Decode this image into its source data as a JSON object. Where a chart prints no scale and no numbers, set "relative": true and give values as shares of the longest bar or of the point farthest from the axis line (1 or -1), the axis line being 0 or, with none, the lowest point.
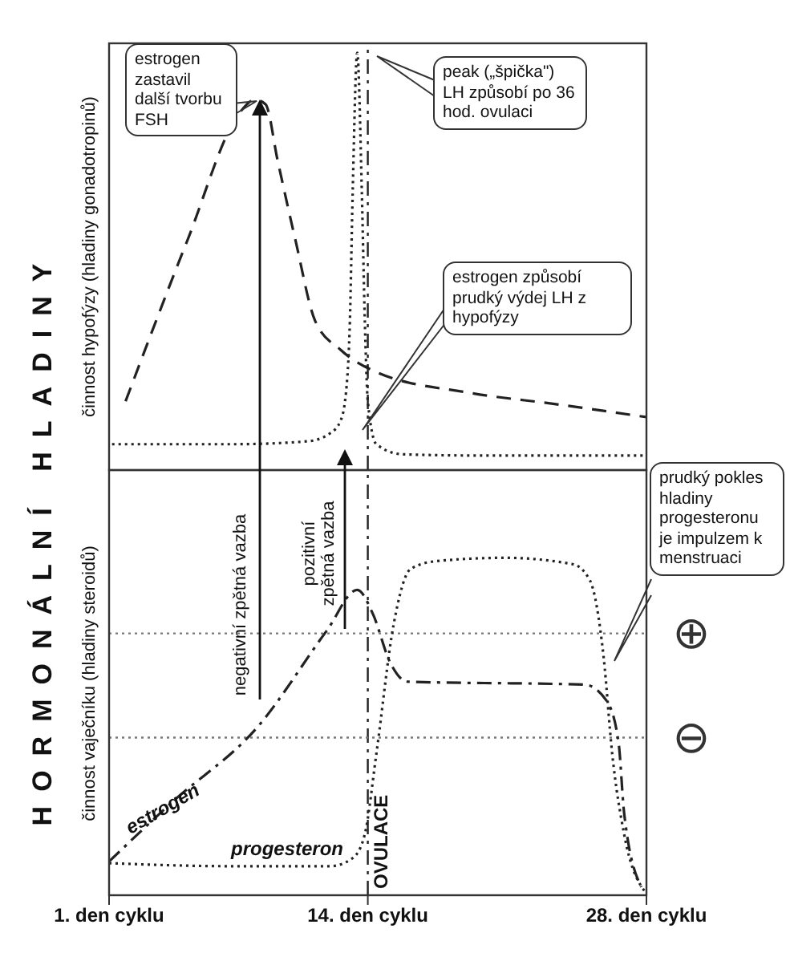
{
  "chart_data": [
    {
      "type": "line",
      "title": "HORMONÁLNÍ HLADINY",
      "ylabel": "činnost hypofýzy (hladiny gonadotropinů)",
      "relative": true,
      "xlim": [
        1,
        28
      ],
      "tick_labels": false,
      "legend": false,
      "grid": false,
      "marker": "none",
      "series": [
        {
          "color": "#222222",
          "line_style": "dashed",
          "x": [
            1.83,
            4.93,
            7.58,
            8.33,
            8.86,
            9.47,
            10.37,
            11.35,
            12.64,
            14.43,
            19.15,
            23.45,
            28
          ],
          "values": [
            0.165,
            0.55,
            0.858,
            0.888,
            0.877,
            0.742,
            0.55,
            0.358,
            0.288,
            0.235,
            0.185,
            0.158,
            0.127
          ]
        },
        {
          "color": "#222222",
          "line_style": "dotted",
          "x": [
            1.15,
            7.2,
            10.98,
            12.1,
            12.64,
            12.94,
            13.1,
            13.24,
            13.47,
            13.7,
            13.85,
            14,
            14.43,
            15.72,
            19.15,
            28
          ],
          "values": [
            0.062,
            0.062,
            0.069,
            0.088,
            0.119,
            0.204,
            0.358,
            0.665,
            1,
            0.665,
            0.358,
            0.165,
            0.062,
            0.038,
            0.035,
            0.035
          ]
        }
      ],
      "ref_lines": [
        {
          "axis": "x",
          "value": 14,
          "line_style": "dashdot",
          "color": "#222222"
        }
      ],
      "annotations": [
        "estrogen zastavil další tvorbu FSH",
        "peak („špička\") LH způsobí po 36 hod. ovulaci",
        "estrogen způsobí prudký výdej LH z hypofýzy"
      ]
    },
    {
      "type": "line",
      "ylabel": "činnost vaječníku (hladiny steroidů)",
      "relative": true,
      "xlim": [
        1,
        28
      ],
      "xticks": [
        {
          "value": 1,
          "label": "1. den cyklu"
        },
        {
          "value": 14,
          "label": "14. den cyklu"
        },
        {
          "value": 28,
          "label": "28. den cyklu"
        }
      ],
      "tick_labels": "x",
      "legend": false,
      "grid": false,
      "marker": "none",
      "series": [
        {
          "name": "estrogen",
          "color": "#222222",
          "line_style": "dashdot",
          "x": [
            1,
            4.17,
            8.48,
            11.96,
            13.47,
            14.26,
            15.12,
            15.98,
            24.9,
            26.0,
            26.6,
            26.88,
            27.74
          ],
          "values": [
            0.1,
            0.276,
            0.5,
            0.786,
            0.905,
            0.833,
            0.69,
            0.633,
            0.624,
            0.576,
            0.452,
            0.243,
            0.024
          ]
        },
        {
          "name": "progesteron",
          "color": "#222222",
          "line_style": "dotted",
          "x": [
            1,
            7.2,
            12.1,
            13.24,
            13.85,
            14.43,
            15.29,
            16.15,
            17.43,
            20.87,
            24.3,
            25.16,
            25.85,
            26.28,
            26.88,
            28
          ],
          "values": [
            0.095,
            0.086,
            0.086,
            0.11,
            0.181,
            0.419,
            0.8,
            0.967,
            0.99,
            1,
            0.981,
            0.933,
            0.705,
            0.419,
            0.181,
            0.005
          ]
        }
      ],
      "ref_lines": [
        {
          "axis": "x",
          "value": 14,
          "label": "OVULACE",
          "line_style": "dashdot",
          "color": "#222222"
        },
        {
          "axis": "y",
          "value": 0.776,
          "label": "⊕",
          "line_style": "dotted",
          "color": "#777777"
        },
        {
          "axis": "y",
          "value": 0.467,
          "label": "⊖",
          "line_style": "dotted",
          "color": "#777777"
        }
      ],
      "annotations": [
        "negativní zpětná vazba",
        "pozitivní zpětná vazba",
        "prudký pokles hladiny progesteronu je impulzem k menstruaci"
      ]
    }
  ]
}
